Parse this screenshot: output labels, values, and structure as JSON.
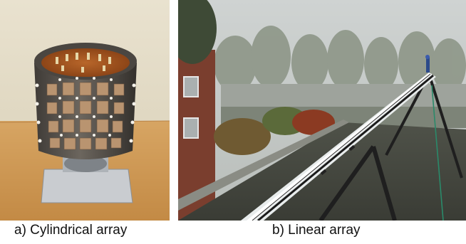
{
  "figure": {
    "panels": [
      {
        "caption": "a) Cylindrical array"
      },
      {
        "caption": "b) Linear array"
      }
    ]
  }
}
